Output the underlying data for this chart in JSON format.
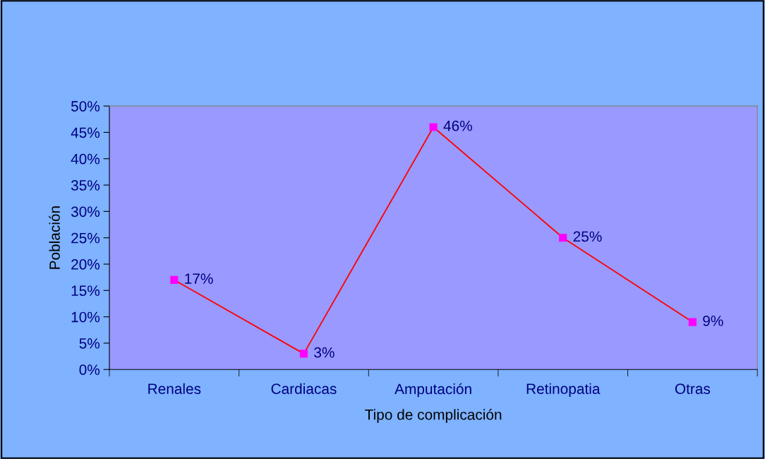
{
  "chart_data": {
    "type": "line",
    "xlabel": "Tipo de complicación",
    "ylabel": "Población",
    "categories": [
      "Renales",
      "Cardiacas",
      "Amputación",
      "Retinopatia",
      "Otras"
    ],
    "series": [
      {
        "color": "#ff0000",
        "values": [
          17,
          3,
          46,
          25,
          9
        ],
        "value_labels": [
          "17%",
          "3%",
          "46%",
          "25%",
          "9%"
        ]
      }
    ],
    "marker": "square",
    "line_style": "solid",
    "ylim": [
      0,
      50
    ],
    "yticks": [
      {
        "value": 0,
        "label": "0%"
      },
      {
        "value": 5,
        "label": "5%"
      },
      {
        "value": 10,
        "label": "10%"
      },
      {
        "value": 15,
        "label": "15%"
      },
      {
        "value": 20,
        "label": "20%"
      },
      {
        "value": 25,
        "label": "25%"
      },
      {
        "value": 30,
        "label": "30%"
      },
      {
        "value": 35,
        "label": "35%"
      },
      {
        "value": 40,
        "label": "40%"
      },
      {
        "value": 45,
        "label": "45%"
      },
      {
        "value": 50,
        "label": "50%"
      }
    ],
    "grid": false
  }
}
